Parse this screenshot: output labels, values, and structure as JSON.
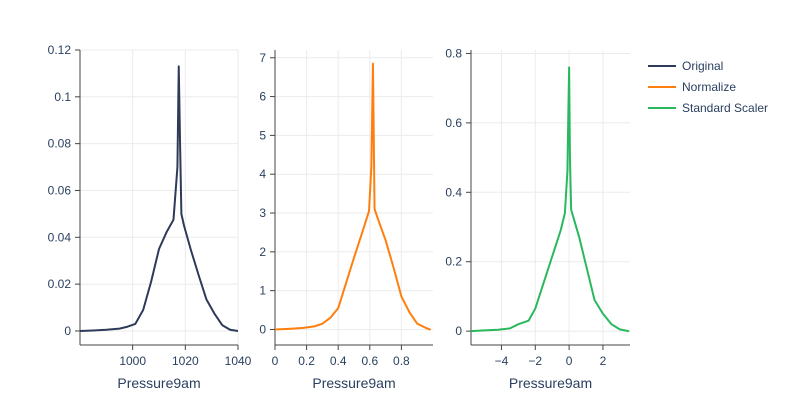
{
  "chart_data": [
    {
      "type": "line",
      "xlabel": "Pressure9am",
      "xlim": [
        980,
        1040
      ],
      "ylim": [
        -0.006,
        0.12
      ],
      "x_ticks": [
        1000,
        1020,
        1040
      ],
      "x_tick_labels": [
        "1000",
        "1020",
        "1040"
      ],
      "y_ticks": [
        0,
        0.02,
        0.04,
        0.06,
        0.08,
        0.1,
        0.12
      ],
      "y_tick_labels": [
        "0",
        "0.02",
        "0.04",
        "0.06",
        "0.08",
        "0.1",
        "0.12"
      ],
      "grid": true,
      "series": [
        {
          "name": "Original",
          "color": "#2e3a59",
          "x": [
            980,
            985,
            990,
            995,
            998,
            1001,
            1004,
            1007,
            1010,
            1013,
            1015.5,
            1017,
            1017.5,
            1018,
            1018.5,
            1019.5,
            1022,
            1025,
            1028,
            1031,
            1034,
            1037,
            1040
          ],
          "y": [
            0.0,
            0.0002,
            0.0005,
            0.001,
            0.0018,
            0.003,
            0.009,
            0.021,
            0.035,
            0.0425,
            0.0475,
            0.07,
            0.113,
            0.08,
            0.05,
            0.045,
            0.035,
            0.024,
            0.0135,
            0.0075,
            0.0025,
            0.0005,
            0.0
          ]
        }
      ]
    },
    {
      "type": "line",
      "xlabel": "Pressure9am",
      "xlim": [
        0,
        1
      ],
      "ylim": [
        -0.4,
        7.2
      ],
      "x_ticks": [
        0,
        0.2,
        0.4,
        0.6,
        0.8
      ],
      "x_tick_labels": [
        "0",
        "0.2",
        "0.4",
        "0.6",
        "0.8"
      ],
      "y_ticks": [
        0,
        1,
        2,
        3,
        4,
        5,
        6,
        7
      ],
      "y_tick_labels": [
        "0",
        "1",
        "2",
        "3",
        "4",
        "5",
        "6",
        "7"
      ],
      "grid": true,
      "series": [
        {
          "name": "Normalize",
          "color": "#ff7f0e",
          "x": [
            0.0,
            0.1,
            0.18,
            0.25,
            0.3,
            0.35,
            0.4,
            0.45,
            0.5,
            0.56,
            0.595,
            0.61,
            0.62,
            0.625,
            0.63,
            0.66,
            0.7,
            0.75,
            0.8,
            0.85,
            0.9,
            0.95,
            0.98
          ],
          "y": [
            0.0,
            0.02,
            0.04,
            0.08,
            0.15,
            0.3,
            0.55,
            1.2,
            1.85,
            2.6,
            3.05,
            4.2,
            6.85,
            5.0,
            3.1,
            2.75,
            2.3,
            1.6,
            0.85,
            0.45,
            0.15,
            0.05,
            0.0
          ]
        }
      ]
    },
    {
      "type": "line",
      "xlabel": "Pressure9am",
      "xlim": [
        -5.8,
        3.6
      ],
      "ylim": [
        -0.04,
        0.81
      ],
      "x_ticks": [
        -4,
        -2,
        0,
        2
      ],
      "x_tick_labels": [
        "−4",
        "−2",
        "0",
        "2"
      ],
      "y_ticks": [
        0,
        0.2,
        0.4,
        0.6,
        0.8
      ],
      "y_tick_labels": [
        "0",
        "0.2",
        "0.4",
        "0.6",
        "0.8"
      ],
      "grid": true,
      "series": [
        {
          "name": "Standard Scaler",
          "color": "#2ab85e",
          "x": [
            -5.8,
            -5.0,
            -4.2,
            -3.5,
            -3.0,
            -2.4,
            -2.0,
            -1.5,
            -1.0,
            -0.5,
            -0.25,
            -0.1,
            0.0,
            0.05,
            0.12,
            0.3,
            0.6,
            1.0,
            1.5,
            2.0,
            2.5,
            3.0,
            3.5
          ],
          "y": [
            0.0,
            0.002,
            0.004,
            0.008,
            0.02,
            0.03,
            0.065,
            0.14,
            0.215,
            0.29,
            0.34,
            0.46,
            0.76,
            0.5,
            0.35,
            0.32,
            0.27,
            0.19,
            0.09,
            0.05,
            0.02,
            0.005,
            0.0
          ]
        }
      ]
    }
  ],
  "legend": {
    "position": "top-right",
    "entries": [
      {
        "label": "Original",
        "color": "#2e3a59"
      },
      {
        "label": "Normalize",
        "color": "#ff7f0e"
      },
      {
        "label": "Standard Scaler",
        "color": "#2ab85e"
      }
    ]
  }
}
